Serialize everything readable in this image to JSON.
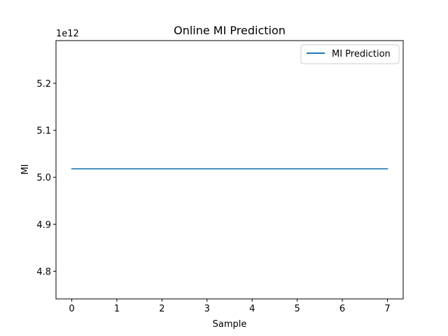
{
  "chart_data": {
    "type": "line",
    "title": "Online MI Prediction",
    "xlabel": "Sample",
    "ylabel": "MI",
    "y_offset_text": "1e12",
    "xlim": [
      -0.35,
      7.35
    ],
    "ylim": [
      4.741,
      5.291
    ],
    "x_ticks": [
      0,
      1,
      2,
      3,
      4,
      5,
      6,
      7
    ],
    "x_tick_labels": [
      "0",
      "1",
      "2",
      "3",
      "4",
      "5",
      "6",
      "7"
    ],
    "y_ticks": [
      4.8,
      4.9,
      5.0,
      5.1,
      5.2
    ],
    "y_tick_labels": [
      "4.8",
      "4.9",
      "5.0",
      "5.1",
      "5.2"
    ],
    "legend_position": "upper right",
    "grid": false,
    "series": [
      {
        "name": "MI Prediction",
        "color": "#1f77b4",
        "x": [
          0,
          1,
          2,
          3,
          4,
          5,
          6,
          7
        ],
        "y": [
          5.018,
          5.018,
          5.018,
          5.018,
          5.018,
          5.018,
          5.018,
          5.018
        ]
      }
    ]
  }
}
